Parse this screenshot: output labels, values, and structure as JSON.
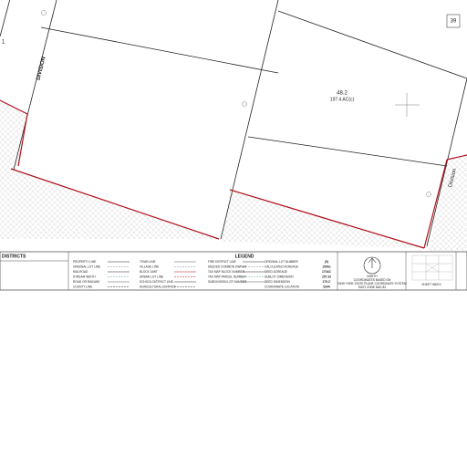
{
  "map": {
    "labels": {
      "division_left": "DIVISION",
      "division_right": "Division",
      "parcel_number": "48.2",
      "parcel_acreage": "197.4 AC(c)",
      "corner_number": "39",
      "partial_number": "1"
    }
  },
  "legend": {
    "districts_title": "DISTRICTS",
    "title": "LEGEND",
    "items": [
      "PROPERTY LINE",
      "ORIGINAL LOT LINE",
      "RAILROAD",
      "STREAM WIDTH",
      "ROAD OR RAILWAY",
      "COUNTY LINE",
      "TOWN LINE",
      "VILLAGE LINE",
      "BLOCK LIMIT",
      "URBAN LOT LINE",
      "SCHOOL DISTRICT LINE",
      "AGRICULTURAL DISTRICT",
      "FIRE DISTRICT LINE",
      "DEEDED COMMON OWNER",
      "TAX MAP BLOCK NUMBER",
      "TAX MAP PARCEL NUMBER",
      "SUBDIVISION LOT NUMBER",
      "ORIGINAL LOT NUMBER",
      "CALCULATED ACREAGE",
      "DEED ACREAGE",
      "SUBLOT DIMENSION",
      "DEED DIMENSION",
      "COORDINATE LOCATION"
    ],
    "values": [
      "(5)",
      "150Ac",
      "170AC",
      "257.33",
      "175.2'",
      "S344"
    ],
    "north": "NORTH",
    "coordinates_note": [
      "COORDINATES BASED ON",
      "NEW YORK STATE PLANE COORDINATE SYSTEM",
      "EAST ZONE NAD 83"
    ],
    "sheet_index": "SHEET INDEX"
  }
}
